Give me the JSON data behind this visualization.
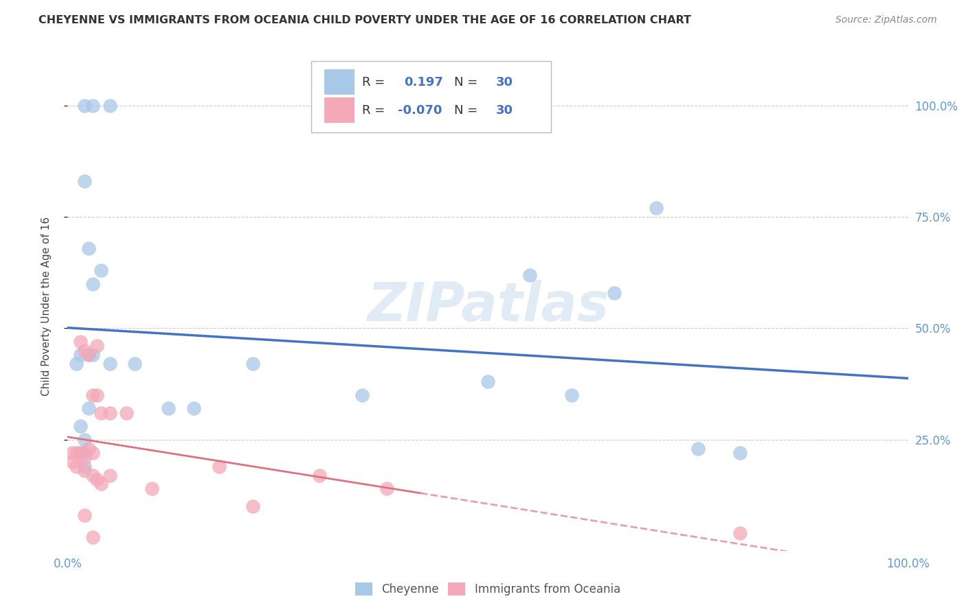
{
  "title": "CHEYENNE VS IMMIGRANTS FROM OCEANIA CHILD POVERTY UNDER THE AGE OF 16 CORRELATION CHART",
  "source": "Source: ZipAtlas.com",
  "ylabel": "Child Poverty Under the Age of 16",
  "legend_blue_r": "0.197",
  "legend_blue_n": "30",
  "legend_pink_r": "-0.070",
  "legend_pink_n": "30",
  "blue_color": "#A8C8E8",
  "pink_color": "#F4A8B8",
  "blue_line_color": "#4472C4",
  "pink_line_solid_color": "#E07080",
  "pink_line_dash_color": "#E8A0B0",
  "watermark": "ZIPatlas",
  "blue_x": [
    0.02,
    0.03,
    0.05,
    0.02,
    0.025,
    0.03,
    0.04,
    0.015,
    0.01,
    0.025,
    0.03,
    0.05,
    0.08,
    0.22,
    0.55,
    0.65,
    0.7,
    0.015,
    0.02,
    0.02,
    0.025,
    0.15,
    0.35,
    0.6,
    0.8,
    0.015,
    0.02,
    0.12,
    0.5,
    0.75
  ],
  "blue_y": [
    1.0,
    1.0,
    1.0,
    0.83,
    0.68,
    0.6,
    0.63,
    0.44,
    0.42,
    0.44,
    0.44,
    0.42,
    0.42,
    0.42,
    0.62,
    0.58,
    0.77,
    0.28,
    0.25,
    0.22,
    0.32,
    0.32,
    0.35,
    0.35,
    0.22,
    0.22,
    0.19,
    0.32,
    0.38,
    0.23
  ],
  "pink_x": [
    0.005,
    0.01,
    0.015,
    0.02,
    0.025,
    0.03,
    0.035,
    0.015,
    0.02,
    0.025,
    0.03,
    0.04,
    0.05,
    0.07,
    0.005,
    0.01,
    0.02,
    0.03,
    0.035,
    0.04,
    0.05,
    0.035,
    0.1,
    0.22,
    0.38,
    0.8,
    0.02,
    0.03,
    0.18,
    0.3
  ],
  "pink_y": [
    0.22,
    0.22,
    0.22,
    0.21,
    0.23,
    0.22,
    0.46,
    0.47,
    0.45,
    0.44,
    0.35,
    0.31,
    0.31,
    0.31,
    0.2,
    0.19,
    0.18,
    0.17,
    0.16,
    0.15,
    0.17,
    0.35,
    0.14,
    0.1,
    0.14,
    0.04,
    0.08,
    0.03,
    0.19,
    0.17
  ],
  "background_color": "#FFFFFF",
  "grid_color": "#CCCCCC",
  "tick_color": "#5B9BD5",
  "title_color": "#333333",
  "ylabel_color": "#444444"
}
